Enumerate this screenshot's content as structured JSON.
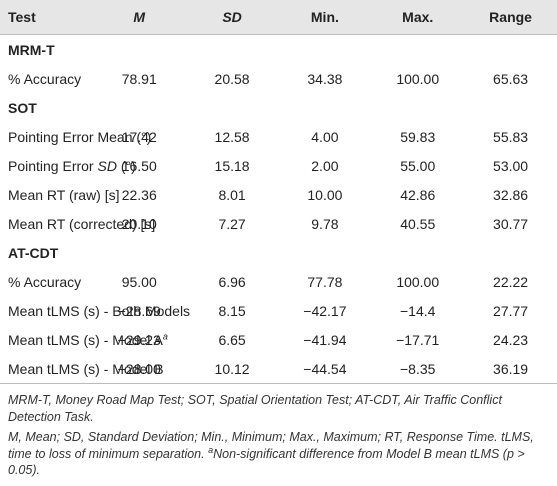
{
  "table": {
    "header": [
      "Test",
      "M",
      "SD",
      "Min.",
      "Max.",
      "Range"
    ],
    "sections": [
      {
        "title": "MRM-T",
        "rows": [
          {
            "label": [
              {
                "text": "% Accuracy"
              }
            ],
            "values": [
              "78.91",
              "20.58",
              "34.38",
              "100.00",
              "65.63"
            ]
          }
        ]
      },
      {
        "title": "SOT",
        "rows": [
          {
            "label": [
              {
                "text": "Pointing Error Mean (°)"
              }
            ],
            "values": [
              "17.42",
              "12.58",
              "4.00",
              "59.83",
              "55.83"
            ]
          },
          {
            "label": [
              {
                "text": "Pointing Error "
              },
              {
                "text": "SD",
                "italic": true
              },
              {
                "text": " (°)"
              }
            ],
            "values": [
              "16.50",
              "15.18",
              "2.00",
              "55.00",
              "53.00"
            ]
          },
          {
            "label": [
              {
                "text": "Mean RT (raw) [s]"
              }
            ],
            "values": [
              "22.36",
              "8.01",
              "10.00",
              "42.86",
              "32.86"
            ]
          },
          {
            "label": [
              {
                "text": "Mean RT (corrected) [s]"
              }
            ],
            "values": [
              "20.10",
              "7.27",
              "9.78",
              "40.55",
              "30.77"
            ]
          }
        ]
      },
      {
        "title": "AT-CDT",
        "rows": [
          {
            "label": [
              {
                "text": "% Accuracy"
              }
            ],
            "values": [
              "95.00",
              "6.96",
              "77.78",
              "100.00",
              "22.22"
            ]
          },
          {
            "label": [
              {
                "text": "Mean tLMS (s) - Both Models"
              }
            ],
            "values": [
              "−28.69",
              "8.15",
              "−42.17",
              "−14.4",
              "27.77"
            ]
          },
          {
            "label": [
              {
                "text": "Mean tLMS (s) - Model A"
              },
              {
                "text": "a",
                "italic": true,
                "sup": true
              }
            ],
            "values": [
              "−29.23",
              "6.65",
              "−41.94",
              "−17.71",
              "24.23"
            ]
          },
          {
            "label": [
              {
                "text": "Mean tLMS (s) - Model B"
              }
            ],
            "values": [
              "−28.00",
              "10.12",
              "−44.54",
              "−8.35",
              "36.19"
            ]
          }
        ]
      }
    ]
  },
  "notes": [
    [
      {
        "text": "MRM-T, Money Road Map Test; SOT, Spatial Orientation Test; AT-CDT, Air Traffic Conflict Detection Task."
      }
    ],
    [
      {
        "text": "M, Mean; SD, Standard Deviation; Min., Minimum; Max., Maximum; RT, Response Time. tLMS, time to loss of minimum separation. "
      },
      {
        "text": "a",
        "sup": true
      },
      {
        "text": "Non-significant difference from Model B mean tLMS (p > 0.05)."
      }
    ]
  ]
}
